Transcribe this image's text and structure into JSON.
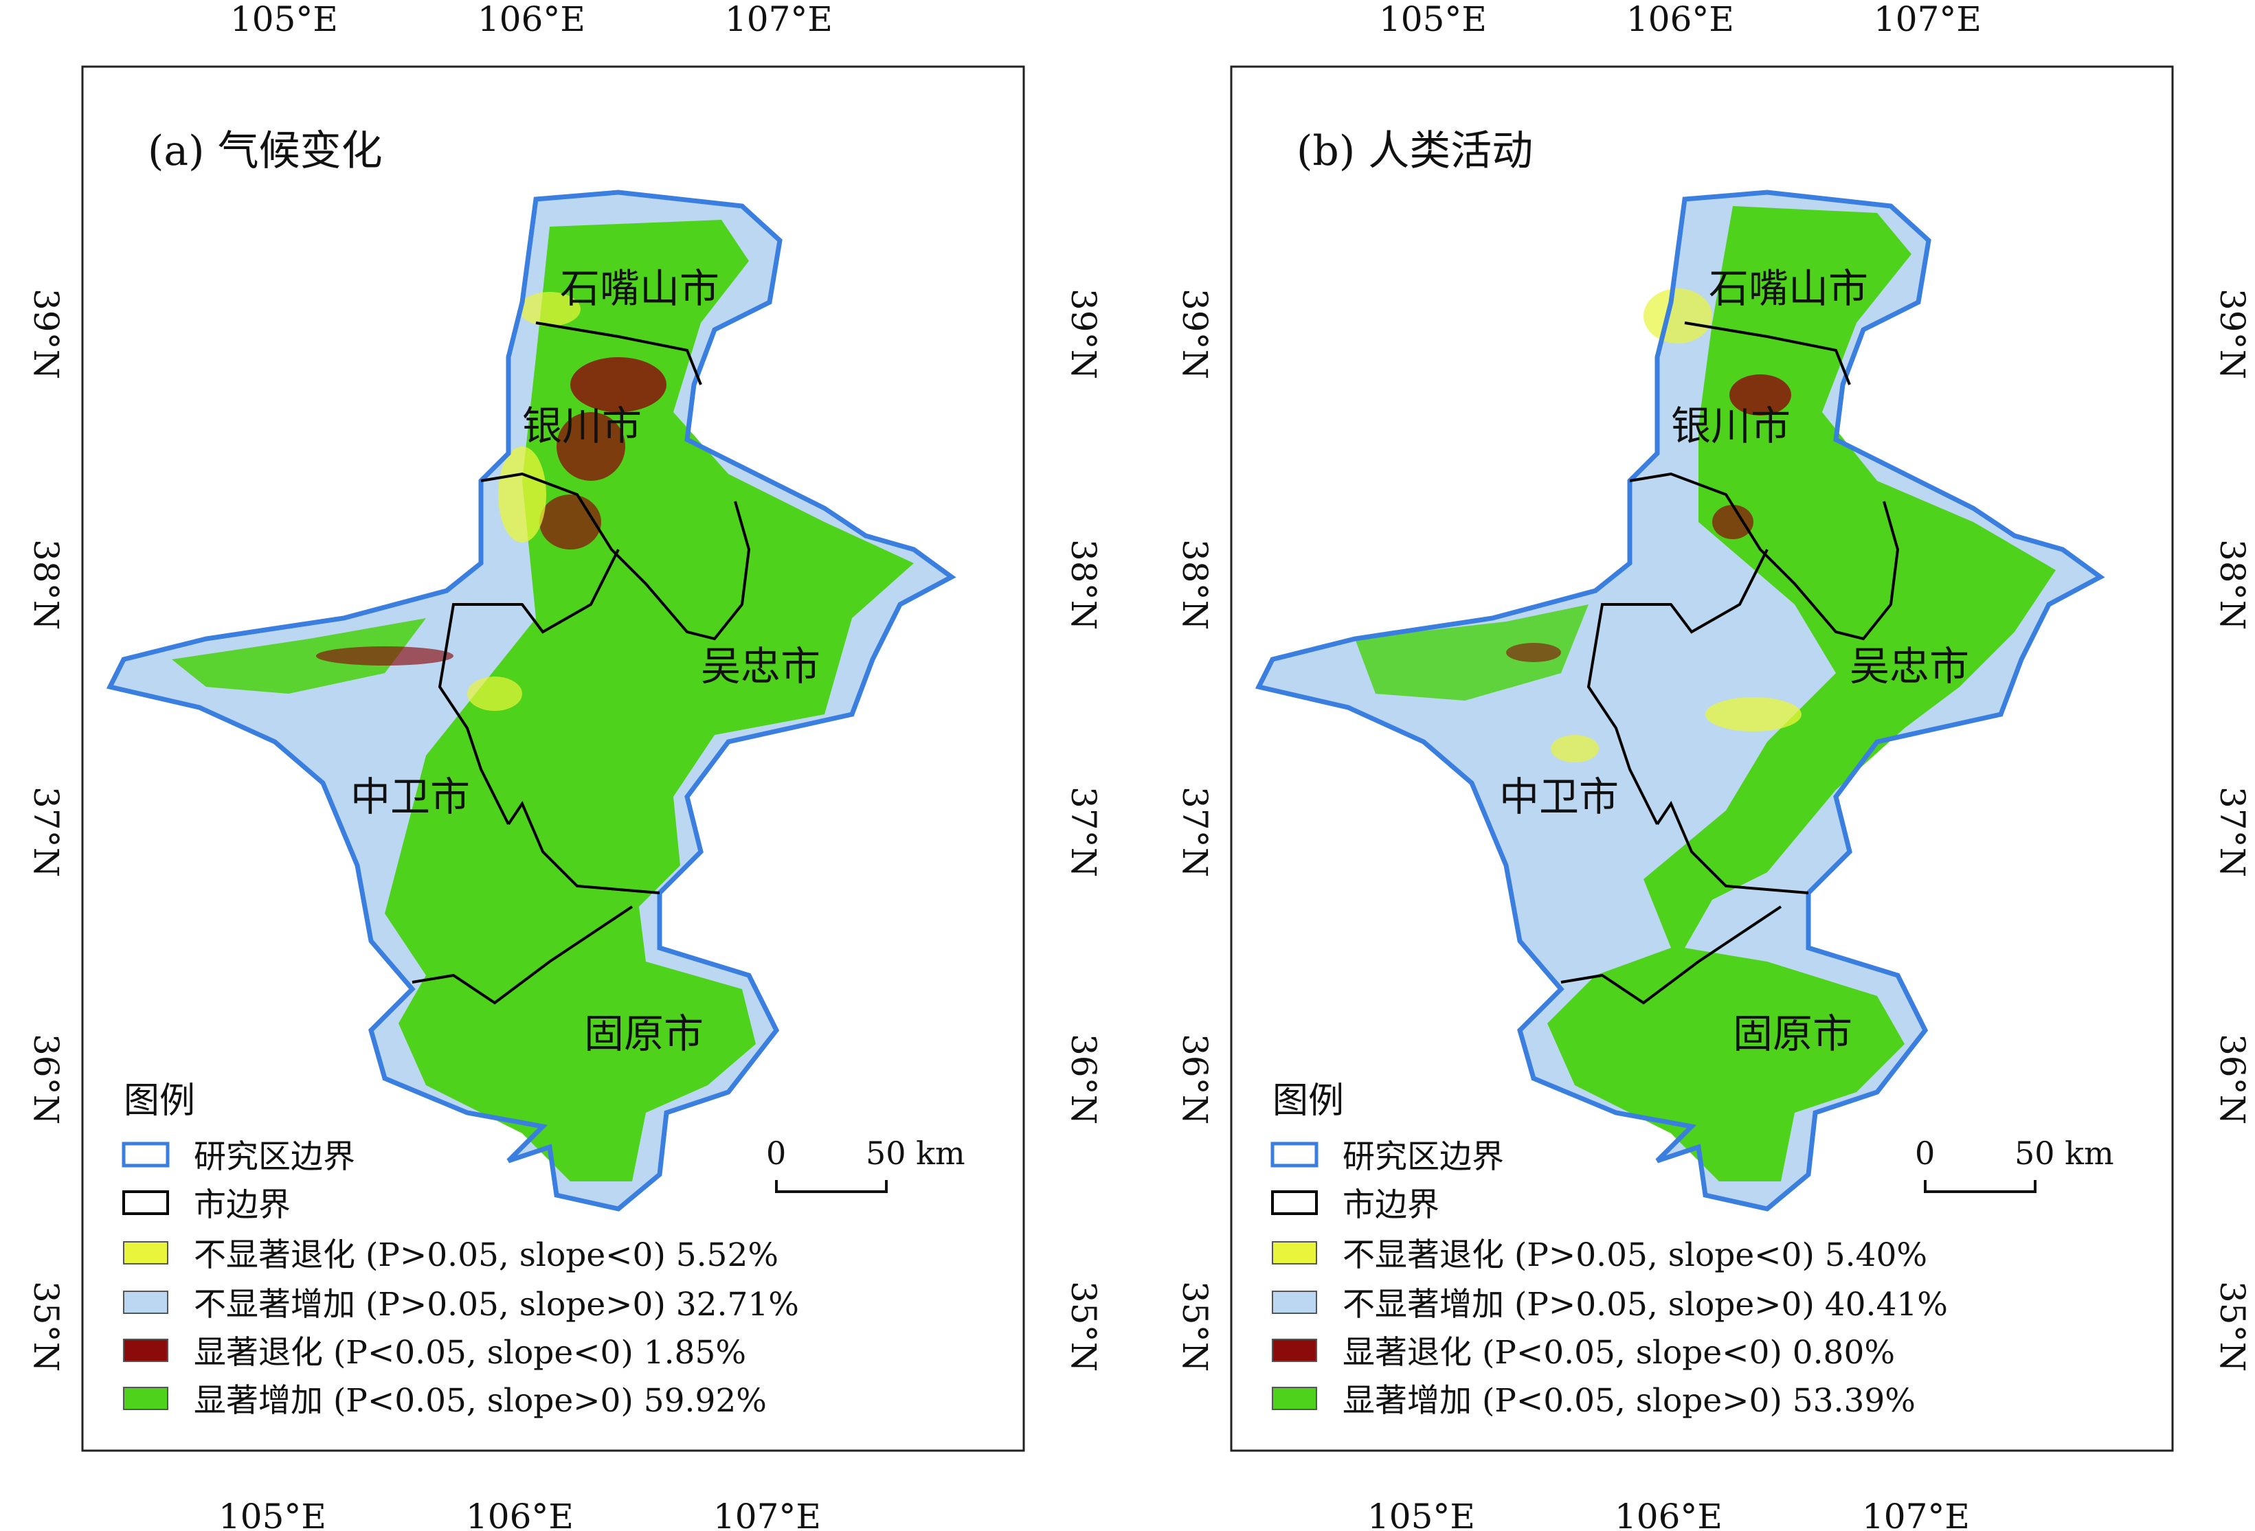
{
  "panels": [
    {
      "title": "(a) 气候变化",
      "cities": [
        "石嘴山市",
        "银川市",
        "吴忠市",
        "中卫市",
        "固原市"
      ],
      "legend": {
        "heading": "图例",
        "items": [
          {
            "label": "研究区边界",
            "kind": "boundary",
            "color": "#3a7fe0"
          },
          {
            "label": "市边界",
            "kind": "boundary",
            "color": "#000000"
          },
          {
            "label": "不显著退化 (P>0.05, slope<0) 5.52%",
            "kind": "fill",
            "color": "#e8f53a"
          },
          {
            "label": "不显著增加 (P>0.05, slope>0) 32.71%",
            "kind": "fill",
            "color": "#bcd7f2"
          },
          {
            "label": "显著退化 (P<0.05, slope<0) 1.85%",
            "kind": "fill",
            "color": "#8b0a0a"
          },
          {
            "label": "显著增加 (P<0.05, slope>0) 59.92%",
            "kind": "fill",
            "color": "#4fd21b"
          }
        ]
      },
      "scalebar": {
        "zero": "0",
        "end": "50 km"
      },
      "x_ticks": [
        "105°E",
        "106°E",
        "107°E"
      ],
      "y_ticks": [
        "39°N",
        "38°N",
        "37°N",
        "36°N",
        "35°N"
      ]
    },
    {
      "title": "(b) 人类活动",
      "cities": [
        "石嘴山市",
        "银川市",
        "吴忠市",
        "中卫市",
        "固原市"
      ],
      "legend": {
        "heading": "图例",
        "items": [
          {
            "label": "研究区边界",
            "kind": "boundary",
            "color": "#3a7fe0"
          },
          {
            "label": "市边界",
            "kind": "boundary",
            "color": "#000000"
          },
          {
            "label": "不显著退化 (P>0.05, slope<0) 5.40%",
            "kind": "fill",
            "color": "#e8f53a"
          },
          {
            "label": "不显著增加 (P>0.05, slope>0) 40.41%",
            "kind": "fill",
            "color": "#bcd7f2"
          },
          {
            "label": "显著退化 (P<0.05, slope<0) 0.80%",
            "kind": "fill",
            "color": "#8b0a0a"
          },
          {
            "label": "显著增加 (P<0.05, slope>0) 53.39%",
            "kind": "fill",
            "color": "#4fd21b"
          }
        ]
      },
      "scalebar": {
        "zero": "0",
        "end": "50 km"
      },
      "x_ticks": [
        "105°E",
        "106°E",
        "107°E"
      ],
      "y_ticks": [
        "39°N",
        "38°N",
        "37°N",
        "36°N",
        "35°N"
      ]
    }
  ],
  "colors": {
    "study_boundary": "#3a7fe0",
    "city_boundary": "#000000",
    "not_sig_degrade": "#e8f53a",
    "not_sig_increase": "#bcd7f2",
    "sig_degrade": "#8b0a0a",
    "sig_increase": "#4fd21b"
  }
}
